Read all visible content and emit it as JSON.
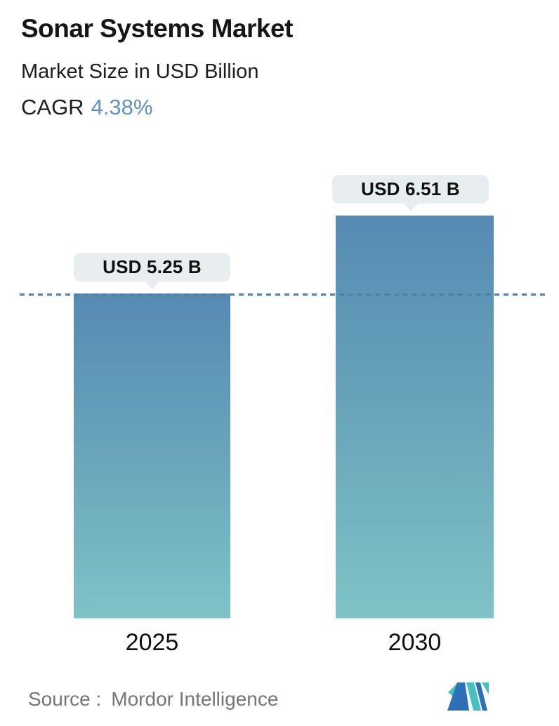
{
  "header": {
    "title": "Sonar Systems Market",
    "subtitle": "Market Size in USD Billion",
    "cagr_label": "CAGR",
    "cagr_value": "4.38%"
  },
  "chart_data": {
    "type": "bar",
    "title": "Sonar Systems Market",
    "subtitle": "Market Size in USD Billion",
    "unit": "USD Billion",
    "categories": [
      "2025",
      "2030"
    ],
    "values": [
      5.25,
      6.51
    ],
    "bar_labels": [
      "USD 5.25 B",
      "USD 6.51 B"
    ],
    "cagr_percent": 4.38,
    "ylim": [
      0,
      6.51
    ],
    "grid": false,
    "legend": "none",
    "reference_line": {
      "value": 5.25,
      "style": "dashed",
      "color": "#4d80ab"
    },
    "bar_gradient_top": "#578ab3",
    "bar_gradient_bottom": "#7fc3c6",
    "label_bubble_bg": "#e8eef0"
  },
  "footer": {
    "source_label": "Source :",
    "source_value": "Mordor Intelligence",
    "logo": "mordor-intelligence-logo"
  },
  "colors": {
    "accent_blue": "#5f93c0",
    "dashed_line": "#4d80ab",
    "text_dark": "#161616",
    "text_gray": "#767676",
    "logo_teal": "#45c1c4",
    "logo_blue": "#2e70b5"
  }
}
